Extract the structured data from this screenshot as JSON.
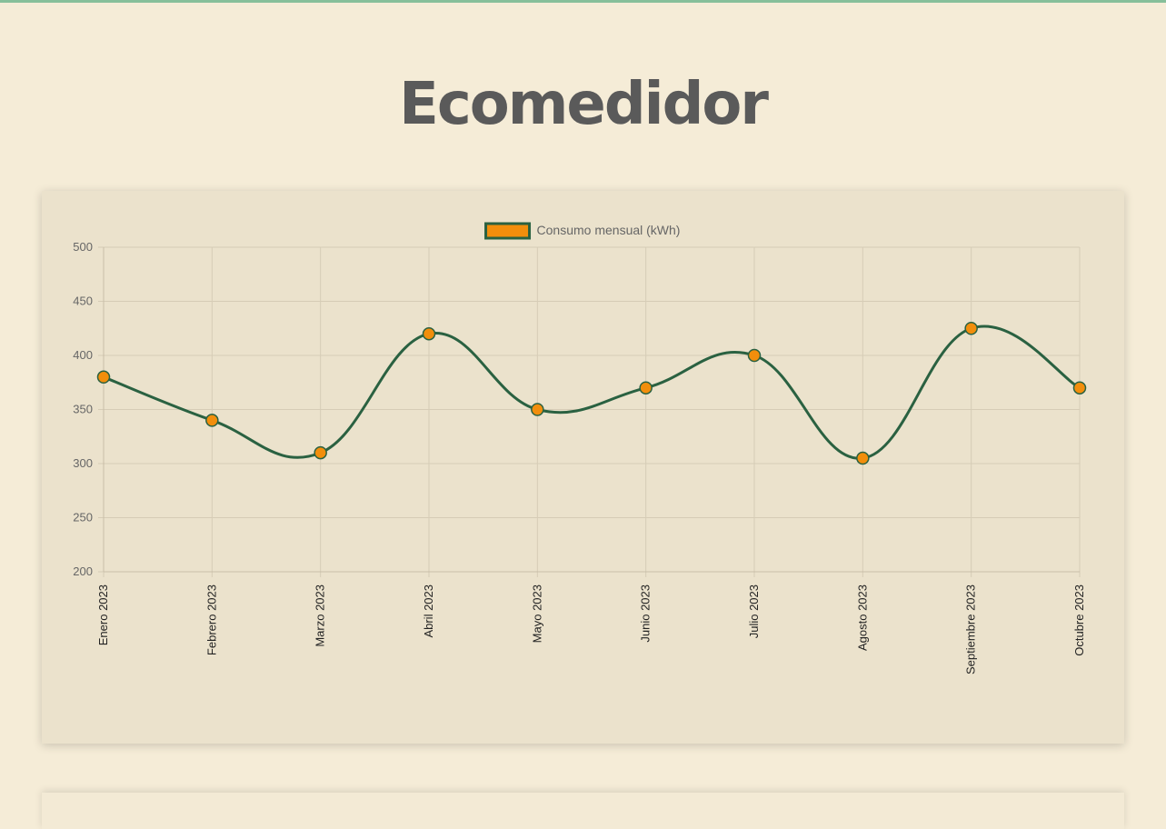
{
  "header": {
    "title": "Ecomedidor"
  },
  "chart_data": {
    "type": "line",
    "categories": [
      "Enero 2023",
      "Febrero 2023",
      "Marzo 2023",
      "Abril 2023",
      "Mayo 2023",
      "Junio 2023",
      "Julio 2023",
      "Agosto 2023",
      "Septiembre 2023",
      "Octubre 2023"
    ],
    "series": [
      {
        "name": "Consumo mensual (kWh)",
        "values": [
          380,
          340,
          310,
          420,
          350,
          370,
          400,
          305,
          425,
          370
        ]
      }
    ],
    "ylim": [
      200,
      500
    ],
    "yticks": [
      500,
      450,
      400,
      350,
      300,
      250,
      200
    ],
    "grid": true,
    "legend": "top-center",
    "line_color": "#2a6141",
    "point_color": "#f28e0c"
  }
}
